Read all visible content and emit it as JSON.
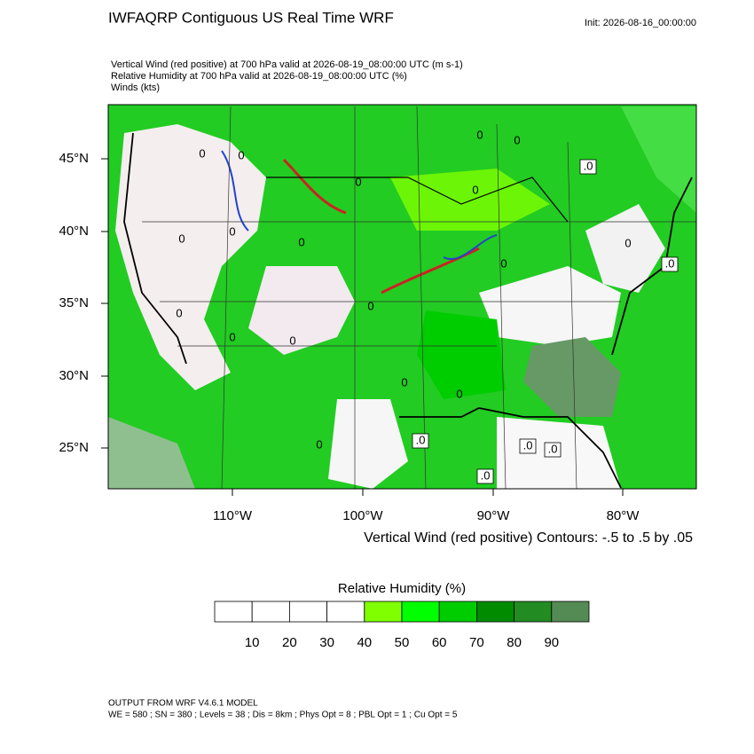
{
  "header": {
    "title": "IWFAQRP Contiguous US Real Time WRF",
    "init": "Init: 2026-08-16_00:00:00",
    "lines": [
      "Vertical Wind (red positive) at 700 hPa valid at 2026-08-19_08:00:00 UTC   (m s-1)",
      "Relative Humidity at 700 hPa valid at 2026-08-19_08:00:00 UTC   (%)",
      "Winds   (kts)"
    ]
  },
  "map": {
    "lat_labels": [
      "45°N",
      "40°N",
      "35°N",
      "30°N",
      "25°N"
    ],
    "lon_labels": [
      "110°W",
      "100°W",
      "90°W",
      "80°W"
    ],
    "contour_labels": [
      "0",
      "0",
      "0",
      "0",
      "0",
      "0",
      "0",
      "0",
      "0",
      "0",
      "0",
      "0",
      "0",
      "0",
      "0",
      "0",
      "0",
      "0",
      ".0",
      ".0",
      ".0",
      ".0",
      ".0",
      ".0"
    ],
    "contour_info": "Vertical Wind (red positive) Contours: -.5 to .5 by .05"
  },
  "colorbar": {
    "title": "Relative Humidity  (%)",
    "colors": [
      "#ffffff",
      "#ffffff",
      "#ffffff",
      "#ffffff",
      "#7fff00",
      "#00ff00",
      "#00cd00",
      "#008b00",
      "#228b22",
      "#548b54"
    ],
    "labels": [
      10,
      20,
      30,
      40,
      50,
      60,
      70,
      80,
      90
    ]
  },
  "footer": {
    "lines": [
      "OUTPUT FROM WRF V4.6.1 MODEL",
      "WE = 580 ; SN = 380 ; Levels = 38 ; Dis = 8km ; Phys Opt = 8 ; PBL Opt = 1 ; Cu Opt = 5"
    ]
  }
}
